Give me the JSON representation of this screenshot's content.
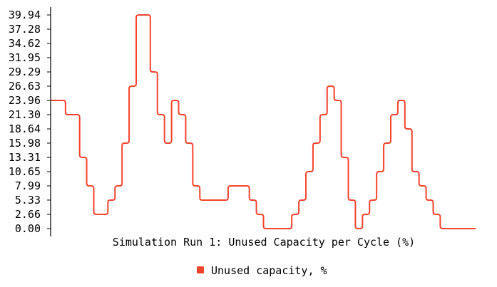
{
  "chart_data": {
    "type": "line",
    "title": "Simulation Run 1: Unused Capacity per Cycle (%)",
    "xlabel": "",
    "ylabel": "",
    "y_ticks": [
      "0.00",
      "2.66",
      "5.33",
      "7.99",
      "10.65",
      "13.31",
      "15.98",
      "18.64",
      "21.30",
      "23.96",
      "26.63",
      "29.29",
      "31.95",
      "34.62",
      "37.28",
      "39.94"
    ],
    "ylim": [
      0,
      39.94
    ],
    "x": [
      0,
      1,
      2,
      3,
      4,
      5,
      6,
      7,
      8,
      9,
      10,
      11,
      12,
      13,
      14,
      15,
      16,
      17,
      18,
      19,
      20,
      21,
      22,
      23,
      24,
      25,
      26,
      27,
      28,
      29,
      30,
      31,
      32,
      33,
      34,
      35,
      36,
      37,
      38,
      39,
      40,
      41,
      42,
      43,
      44,
      45,
      46,
      47,
      48,
      49,
      50,
      51,
      52,
      53,
      54,
      55,
      56,
      57,
      58,
      59
    ],
    "grid": false,
    "legend_position": "bottom-center",
    "series": [
      {
        "name": "Unused capacity, %",
        "color": "#f4442e",
        "values": [
          23.96,
          23.96,
          21.3,
          21.3,
          13.31,
          7.99,
          2.66,
          2.66,
          5.33,
          7.99,
          15.98,
          26.63,
          39.94,
          39.94,
          29.29,
          21.3,
          15.98,
          23.96,
          21.3,
          15.98,
          7.99,
          5.33,
          5.33,
          5.33,
          5.33,
          7.99,
          7.99,
          7.99,
          5.33,
          2.66,
          0.0,
          0.0,
          0.0,
          0.0,
          2.66,
          5.33,
          10.65,
          15.98,
          21.3,
          26.63,
          23.96,
          13.31,
          5.33,
          0.0,
          2.66,
          5.33,
          10.65,
          15.98,
          21.3,
          23.96,
          18.64,
          10.65,
          7.99,
          5.33,
          2.66,
          0.0,
          0.0,
          0.0,
          0.0,
          0.0
        ]
      }
    ]
  }
}
